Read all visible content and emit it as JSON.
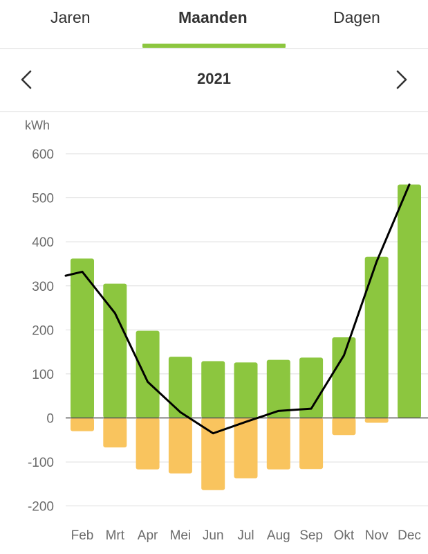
{
  "tabs": [
    {
      "label": "Jaren",
      "active": false
    },
    {
      "label": "Maanden",
      "active": true
    },
    {
      "label": "Dagen",
      "active": false
    }
  ],
  "period": {
    "label": "2021"
  },
  "icons": {
    "prev": "chevron-left-icon",
    "next": "chevron-right-icon"
  },
  "colors": {
    "accent": "#8cc63f",
    "positive": "#8cc63f",
    "negative": "#f9c45e",
    "line": "#000000",
    "grid": "#dddddd"
  },
  "chart_data": {
    "type": "bar",
    "unit_label": "kWh",
    "categories": [
      "Feb",
      "Mrt",
      "Apr",
      "Mei",
      "Jun",
      "Jul",
      "Aug",
      "Sep",
      "Okt",
      "Nov",
      "Dec"
    ],
    "series": [
      {
        "values": [
          362,
          305,
          198,
          139,
          129,
          126,
          132,
          137,
          183,
          366,
          530
        ]
      },
      {
        "values": [
          -30,
          -67,
          -117,
          -126,
          -164,
          -137,
          -117,
          -116,
          -39,
          -11,
          0
        ]
      },
      {
        "type": "line",
        "values_by_month": {
          "Jan": 323,
          "Feb": 332,
          "Mrt": 238,
          "Apr": 82,
          "Mei": 13,
          "Jun": -35,
          "Jul": -9,
          "Aug": 16,
          "Sep": 21,
          "Okt": 142,
          "Nov": 355,
          "Dec": 530
        }
      }
    ],
    "yticks": [
      600,
      500,
      400,
      300,
      200,
      100,
      0,
      -100,
      -200
    ],
    "ylim": [
      -200,
      600
    ],
    "grid": true,
    "legend": "none"
  }
}
